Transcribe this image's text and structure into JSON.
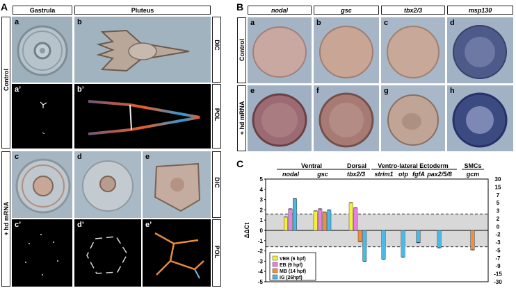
{
  "panelA": {
    "letter": "A",
    "col_headers": [
      "Gastrula",
      "Pluteus"
    ],
    "row_groups": [
      "Control",
      "+ hd mRNA"
    ],
    "right_labels": [
      "DIC",
      "POL",
      "DIC",
      "POL"
    ],
    "sub_labels": [
      "a",
      "b",
      "a’",
      "b’",
      "c",
      "d",
      "e",
      "c’",
      "d’",
      "e’"
    ]
  },
  "panelB": {
    "letter": "B",
    "genes": [
      "nodal",
      "gsc",
      "tbx2/3",
      "msp130"
    ],
    "row_groups": [
      "Control",
      "+ hd mRNA"
    ],
    "sub_labels": [
      "a",
      "b",
      "c",
      "d",
      "e",
      "f",
      "g",
      "h"
    ]
  },
  "panelC": {
    "letter": "C",
    "groups": [
      {
        "label": "Ventral"
      },
      {
        "label": "Dorsal"
      },
      {
        "label": "Ventro-lateral Ectoderm"
      },
      {
        "label": "SMCs"
      }
    ],
    "genes": [
      "nodal",
      "gsc",
      "tbx2/3",
      "strim1",
      "otp",
      "fgfA",
      "pax2/5/8",
      "gcm"
    ],
    "ylabel": "ΔΔCt"
  },
  "chart_data": {
    "type": "bar",
    "categories": [
      "nodal",
      "gsc",
      "tbx2/3",
      "strim1",
      "otp",
      "fgfA",
      "pax2/5/8",
      "gcm"
    ],
    "series": [
      {
        "name": "VEB (6 hpf)",
        "color": "#f5f03c",
        "values": [
          1.3,
          1.9,
          2.7,
          null,
          null,
          null,
          null,
          null
        ]
      },
      {
        "name": "EB (9 hpf)",
        "color": "#e87ee6",
        "values": [
          2.1,
          2.1,
          2.2,
          null,
          null,
          null,
          null,
          null
        ]
      },
      {
        "name": "MB (14 hpf)",
        "color": "#f0903c",
        "values": [
          null,
          1.8,
          -1.1,
          null,
          null,
          null,
          null,
          -1.9
        ]
      },
      {
        "name": "IG (26hpf)",
        "color": "#4cb8e6",
        "values": [
          3.1,
          2.0,
          -3.0,
          -2.8,
          -2.6,
          -1.2,
          -1.7,
          null
        ]
      }
    ],
    "ylim": [
      -5,
      5
    ],
    "yticks": [
      5,
      4,
      3,
      2,
      1,
      0,
      -1,
      -2,
      -3,
      -4,
      -5
    ],
    "right_ticks": [
      "30",
      "15",
      "7",
      "5",
      "3",
      "2",
      "0",
      "-2",
      "-3",
      "-5",
      "-7",
      "-9",
      "-15",
      "-30"
    ],
    "threshold": 1.6,
    "legend_placement": "bottom-left"
  }
}
